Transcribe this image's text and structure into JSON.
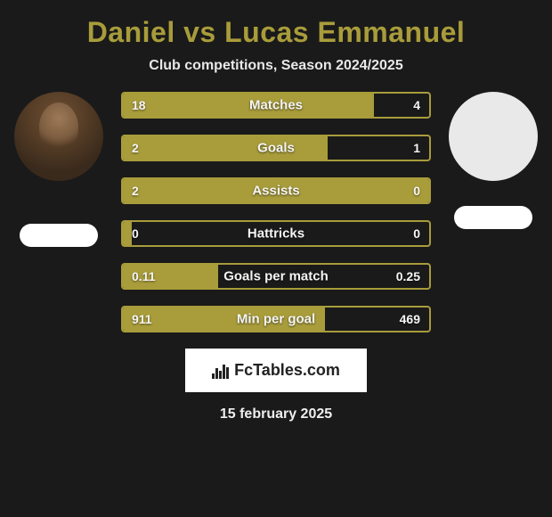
{
  "title": "Daniel vs Lucas Emmanuel",
  "title_color": "#a89c3b",
  "subtitle": "Club competitions, Season 2024/2025",
  "bar_border_color": "#a89c3b",
  "bar_fill_color": "#a89c3b",
  "bar_empty_color": "transparent",
  "background_color": "#1a1a1a",
  "bars": [
    {
      "label": "Matches",
      "left": "18",
      "right": "4",
      "left_pct": 82
    },
    {
      "label": "Goals",
      "left": "2",
      "right": "1",
      "left_pct": 67
    },
    {
      "label": "Assists",
      "left": "2",
      "right": "0",
      "left_pct": 100
    },
    {
      "label": "Hattricks",
      "left": "0",
      "right": "0",
      "left_pct": 3
    },
    {
      "label": "Goals per match",
      "left": "0.11",
      "right": "0.25",
      "left_pct": 31
    },
    {
      "label": "Min per goal",
      "left": "911",
      "right": "469",
      "left_pct": 66
    }
  ],
  "brand": "FcTables.com",
  "date": "15 february 2025"
}
